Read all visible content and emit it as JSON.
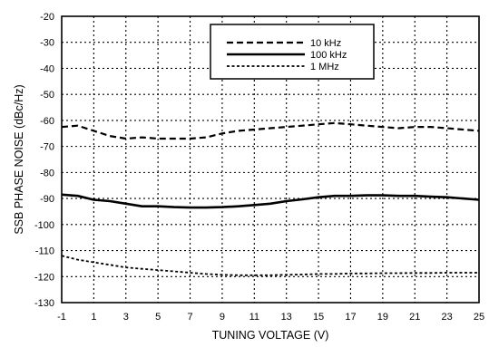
{
  "chart_data": {
    "type": "line",
    "xlabel": "TUNING VOLTAGE (V)",
    "ylabel": "SSB PHASE NOISE (dBc/Hz)",
    "xlim": [
      -1,
      25
    ],
    "ylim": [
      -130,
      -20
    ],
    "xticks": [
      -1,
      1,
      3,
      5,
      7,
      9,
      11,
      13,
      15,
      17,
      19,
      21,
      23,
      25
    ],
    "yticks": [
      -20,
      -30,
      -40,
      -50,
      -60,
      -70,
      -80,
      -90,
      -100,
      -110,
      -120,
      -130
    ],
    "grid": true,
    "legend_position": "top-right",
    "series": [
      {
        "name": "10 kHz",
        "style": "dashed",
        "x": [
          -1,
          0,
          1,
          2,
          3,
          4,
          5,
          6,
          7,
          8,
          9,
          10,
          11,
          12,
          13,
          14,
          15,
          16,
          17,
          18,
          19,
          20,
          21,
          22,
          23,
          24,
          25
        ],
        "y": [
          -62.5,
          -62,
          -64,
          -66,
          -67,
          -66.5,
          -67,
          -67,
          -67,
          -66.5,
          -65,
          -64,
          -63.5,
          -63,
          -62.5,
          -62,
          -61.5,
          -61,
          -61.5,
          -62,
          -62.5,
          -63,
          -62.5,
          -62.5,
          -63,
          -63.5,
          -64
        ]
      },
      {
        "name": "100 kHz",
        "style": "solid",
        "x": [
          -1,
          0,
          1,
          2,
          3,
          4,
          5,
          6,
          7,
          8,
          9,
          10,
          11,
          12,
          13,
          14,
          15,
          16,
          17,
          18,
          19,
          20,
          21,
          22,
          23,
          24,
          25
        ],
        "y": [
          -88.5,
          -89,
          -90.5,
          -91,
          -92,
          -93,
          -93,
          -93.3,
          -93.5,
          -93.5,
          -93.3,
          -93,
          -92.5,
          -92,
          -91,
          -90.3,
          -89.5,
          -89,
          -89,
          -88.8,
          -88.8,
          -89,
          -89,
          -89.3,
          -89.5,
          -90,
          -90.5
        ]
      },
      {
        "name": "1 MHz",
        "style": "dotted",
        "x": [
          -1,
          0,
          1,
          2,
          3,
          4,
          5,
          6,
          7,
          8,
          9,
          10,
          11,
          12,
          13,
          14,
          15,
          16,
          17,
          18,
          19,
          20,
          21,
          22,
          23,
          24,
          25
        ],
        "y": [
          -112,
          -113.5,
          -114.5,
          -115.5,
          -116.5,
          -117,
          -117.5,
          -118,
          -118.5,
          -119,
          -119.3,
          -119.5,
          -119.5,
          -119.5,
          -119.3,
          -119.2,
          -119,
          -119,
          -118.8,
          -118.8,
          -118.7,
          -118.7,
          -118.6,
          -118.6,
          -118.5,
          -118.5,
          -118.5
        ]
      }
    ]
  }
}
